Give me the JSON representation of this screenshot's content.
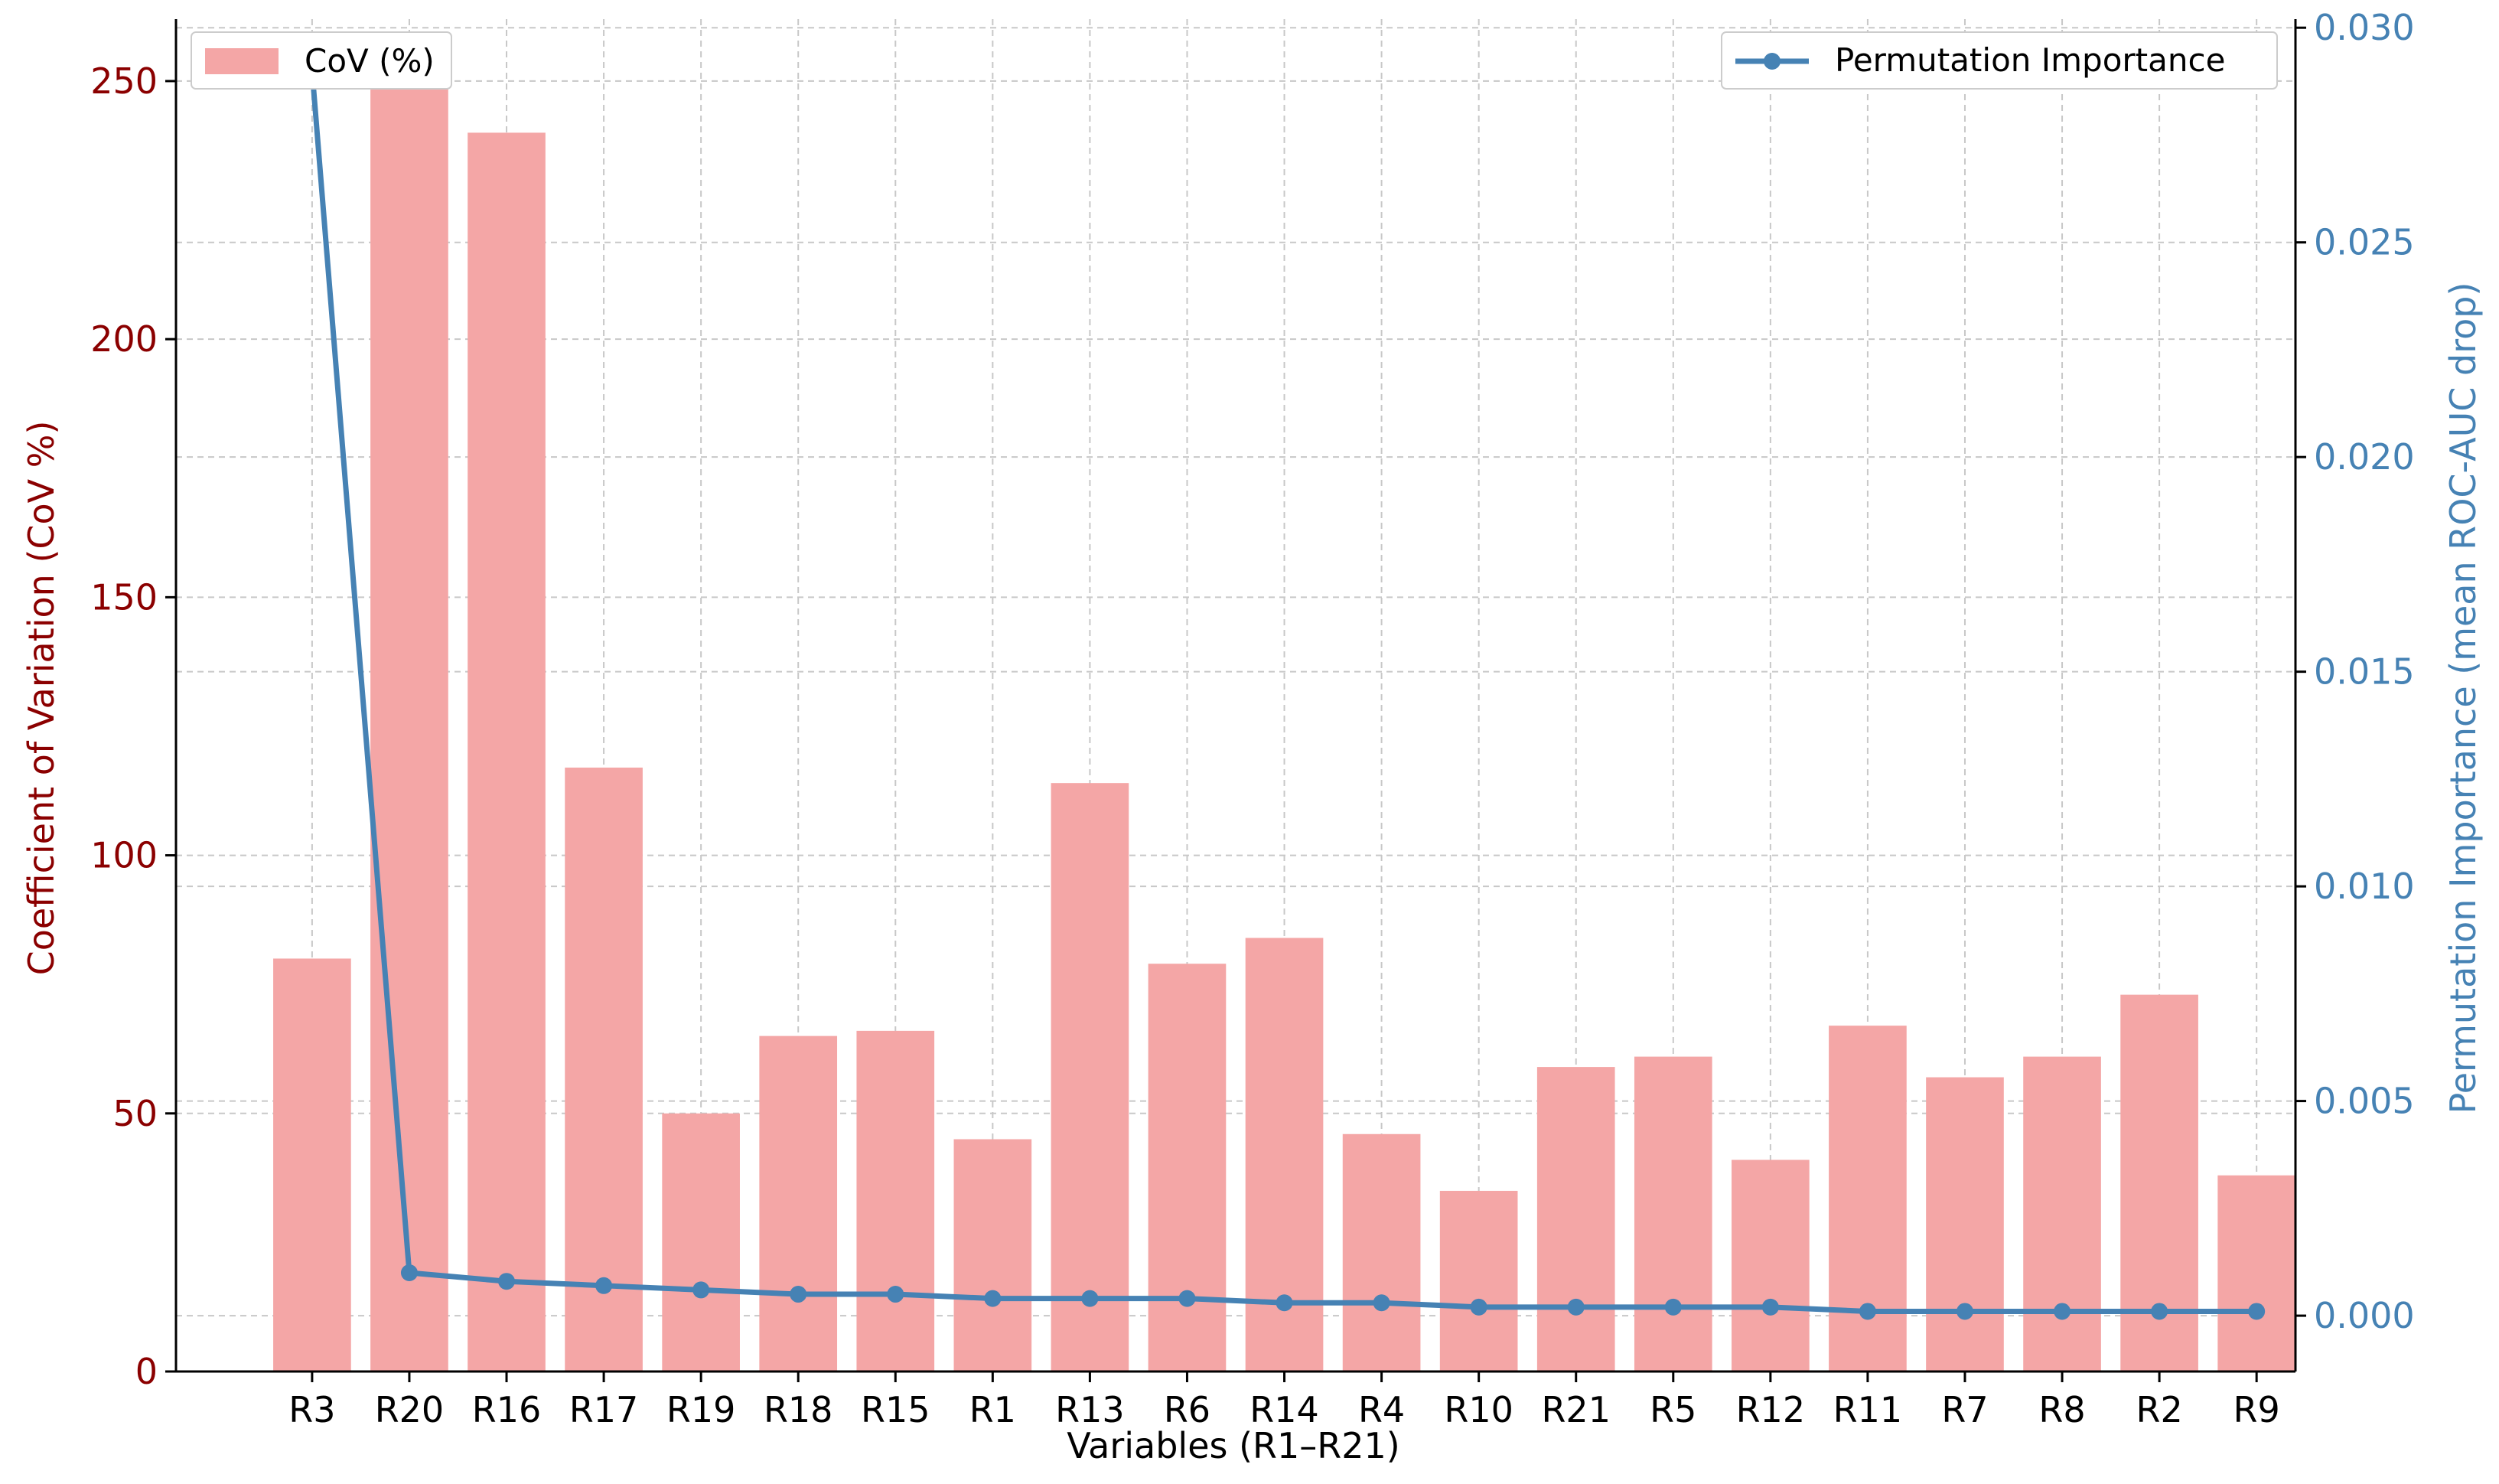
{
  "colors": {
    "bar": "#f4a6a6",
    "line": "#4682b4",
    "left_axis": "#8b0000",
    "right_axis": "#4682b4",
    "grid": "#c8c8c8",
    "axis": "#000000"
  },
  "chart_data": {
    "type": "bar",
    "title": "",
    "xlabel": "Variables (R1–R21)",
    "ylabel": "Coefficient of Variation (CoV %)",
    "y2label": "Permutation Importance (mean ROC-AUC drop)",
    "categories": [
      "R3",
      "R20",
      "R16",
      "R17",
      "R19",
      "R18",
      "R15",
      "R1",
      "R13",
      "R6",
      "R14",
      "R4",
      "R10",
      "R21",
      "R5",
      "R12",
      "R11",
      "R7",
      "R8",
      "R2",
      "R9"
    ],
    "series": [
      {
        "name": "CoV (%)",
        "type": "bar",
        "axis": "left",
        "values": [
          80,
          251,
          240,
          117,
          50,
          65,
          66,
          45,
          114,
          79,
          84,
          46,
          35,
          59,
          61,
          41,
          67,
          57,
          61,
          73,
          38
        ]
      },
      {
        "name": "Permutation Importance",
        "type": "line",
        "axis": "right",
        "values": [
          0.029,
          0.001,
          0.0008,
          0.0007,
          0.0006,
          0.0005,
          0.0005,
          0.0004,
          0.0004,
          0.0004,
          0.0003,
          0.0003,
          0.0002,
          0.0002,
          0.0002,
          0.0002,
          0.0001,
          0.0001,
          0.0001,
          0.0001,
          0.0001
        ]
      }
    ],
    "ylim": [
      0,
      262
    ],
    "y2lim": [
      -0.0013,
      0.0302
    ],
    "yticks": [
      0,
      50,
      100,
      150,
      200,
      250
    ],
    "y2ticks": [
      "0.000",
      "0.005",
      "0.010",
      "0.015",
      "0.020",
      "0.025",
      "0.030"
    ],
    "grid": true,
    "legend": [
      {
        "label": "CoV (%)",
        "placement": "top-left"
      },
      {
        "label": "Permutation Importance",
        "placement": "top-right"
      }
    ]
  }
}
